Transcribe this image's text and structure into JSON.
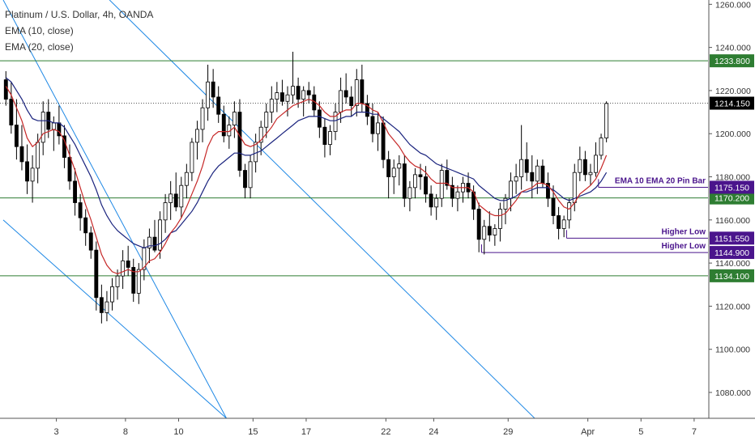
{
  "legend": {
    "title": "Platinum / U.S. Dollar, 4h, OANDA",
    "ema10": "EMA (10, close)",
    "ema20": "EMA (20, close)"
  },
  "colors": {
    "up": "#ffffff",
    "down": "#000000",
    "wick": "#000000",
    "ema10": "#c62828",
    "ema20": "#1a237e",
    "support": "#2e7d32",
    "channel": "#1e88e5",
    "annotation": "#4a148c",
    "current": "#000000",
    "grid": "#e0e3eb"
  },
  "chart_data": {
    "type": "candlestick",
    "title": "Platinum / U.S. Dollar, 4h, OANDA",
    "ylim": [
      1068,
      1262
    ],
    "xlim": [
      0,
      132
    ],
    "y_ticks": [
      "1080.000",
      "1100.000",
      "1120.000",
      "1140.000",
      "1160.000",
      "1180.000",
      "1200.000",
      "1220.000",
      "1240.000",
      "1260.000"
    ],
    "x_ticks": [
      {
        "label": "3",
        "x": 10
      },
      {
        "label": "8",
        "x": 23
      },
      {
        "label": "10",
        "x": 33
      },
      {
        "label": "15",
        "x": 47
      },
      {
        "label": "17",
        "x": 57
      },
      {
        "label": "22",
        "x": 72
      },
      {
        "label": "24",
        "x": 81
      },
      {
        "label": "29",
        "x": 95
      },
      {
        "label": "Apr",
        "x": 110
      },
      {
        "label": "5",
        "x": 120
      },
      {
        "label": "7",
        "x": 130
      }
    ],
    "candles": [
      [
        1225,
        1229,
        1213,
        1216
      ],
      [
        1216,
        1224,
        1200,
        1204
      ],
      [
        1204,
        1216,
        1188,
        1194
      ],
      [
        1194,
        1204,
        1183,
        1187
      ],
      [
        1187,
        1195,
        1172,
        1178
      ],
      [
        1178,
        1190,
        1168,
        1184
      ],
      [
        1184,
        1200,
        1177,
        1196
      ],
      [
        1196,
        1215,
        1190,
        1210
      ],
      [
        1210,
        1216,
        1198,
        1202
      ],
      [
        1202,
        1208,
        1192,
        1205
      ],
      [
        1205,
        1213,
        1195,
        1199
      ],
      [
        1199,
        1204,
        1184,
        1189
      ],
      [
        1189,
        1195,
        1174,
        1178
      ],
      [
        1178,
        1184,
        1162,
        1168
      ],
      [
        1168,
        1172,
        1155,
        1161
      ],
      [
        1161,
        1165,
        1148,
        1154
      ],
      [
        1154,
        1157,
        1142,
        1146
      ],
      [
        1146,
        1150,
        1118,
        1124
      ],
      [
        1124,
        1130,
        1112,
        1117
      ],
      [
        1117,
        1127,
        1113,
        1122
      ],
      [
        1122,
        1133,
        1118,
        1129
      ],
      [
        1129,
        1137,
        1123,
        1134
      ],
      [
        1134,
        1146,
        1128,
        1141
      ],
      [
        1141,
        1148,
        1134,
        1138
      ],
      [
        1138,
        1142,
        1122,
        1126
      ],
      [
        1126,
        1140,
        1121,
        1137
      ],
      [
        1137,
        1151,
        1132,
        1147
      ],
      [
        1147,
        1156,
        1140,
        1152
      ],
      [
        1152,
        1160,
        1145,
        1146
      ],
      [
        1146,
        1164,
        1142,
        1160
      ],
      [
        1160,
        1172,
        1154,
        1168
      ],
      [
        1168,
        1178,
        1160,
        1172
      ],
      [
        1172,
        1182,
        1164,
        1166
      ],
      [
        1166,
        1180,
        1161,
        1176
      ],
      [
        1176,
        1186,
        1170,
        1182
      ],
      [
        1182,
        1198,
        1178,
        1196
      ],
      [
        1196,
        1206,
        1188,
        1202
      ],
      [
        1202,
        1216,
        1196,
        1212
      ],
      [
        1212,
        1232,
        1206,
        1224
      ],
      [
        1224,
        1230,
        1212,
        1217
      ],
      [
        1217,
        1222,
        1205,
        1209
      ],
      [
        1209,
        1213,
        1196,
        1199
      ],
      [
        1199,
        1208,
        1193,
        1204
      ],
      [
        1204,
        1215,
        1198,
        1210
      ],
      [
        1210,
        1216,
        1180,
        1183
      ],
      [
        1183,
        1186,
        1170,
        1175
      ],
      [
        1175,
        1190,
        1170,
        1187
      ],
      [
        1187,
        1200,
        1182,
        1196
      ],
      [
        1196,
        1206,
        1190,
        1203
      ],
      [
        1203,
        1214,
        1198,
        1210
      ],
      [
        1210,
        1222,
        1205,
        1216
      ],
      [
        1216,
        1224,
        1210,
        1219
      ],
      [
        1219,
        1225,
        1213,
        1215
      ],
      [
        1215,
        1222,
        1208,
        1218
      ],
      [
        1218,
        1238,
        1214,
        1222
      ],
      [
        1222,
        1226,
        1212,
        1216
      ],
      [
        1216,
        1222,
        1208,
        1220
      ],
      [
        1220,
        1224,
        1214,
        1218
      ],
      [
        1218,
        1222,
        1208,
        1211
      ],
      [
        1211,
        1215,
        1198,
        1203
      ],
      [
        1203,
        1207,
        1189,
        1195
      ],
      [
        1195,
        1204,
        1190,
        1201
      ],
      [
        1201,
        1214,
        1197,
        1210
      ],
      [
        1210,
        1226,
        1205,
        1220
      ],
      [
        1220,
        1228,
        1214,
        1217
      ],
      [
        1217,
        1222,
        1208,
        1213
      ],
      [
        1213,
        1230,
        1208,
        1225
      ],
      [
        1225,
        1232,
        1210,
        1214
      ],
      [
        1214,
        1218,
        1204,
        1208
      ],
      [
        1208,
        1214,
        1196,
        1200
      ],
      [
        1200,
        1210,
        1192,
        1205
      ],
      [
        1205,
        1208,
        1184,
        1188
      ],
      [
        1188,
        1192,
        1170,
        1180
      ],
      [
        1180,
        1188,
        1172,
        1184
      ],
      [
        1184,
        1190,
        1176,
        1186
      ],
      [
        1186,
        1190,
        1166,
        1170
      ],
      [
        1170,
        1178,
        1164,
        1175
      ],
      [
        1175,
        1184,
        1170,
        1181
      ],
      [
        1181,
        1186,
        1174,
        1180
      ],
      [
        1180,
        1185,
        1168,
        1172
      ],
      [
        1172,
        1176,
        1162,
        1166
      ],
      [
        1166,
        1172,
        1160,
        1170
      ],
      [
        1170,
        1186,
        1166,
        1183
      ],
      [
        1183,
        1188,
        1174,
        1176
      ],
      [
        1176,
        1180,
        1166,
        1170
      ],
      [
        1170,
        1176,
        1164,
        1173
      ],
      [
        1173,
        1180,
        1168,
        1177
      ],
      [
        1177,
        1182,
        1170,
        1173
      ],
      [
        1173,
        1176,
        1160,
        1165
      ],
      [
        1165,
        1168,
        1145,
        1151
      ],
      [
        1151,
        1160,
        1144,
        1157
      ],
      [
        1157,
        1164,
        1150,
        1153
      ],
      [
        1153,
        1158,
        1148,
        1156
      ],
      [
        1156,
        1168,
        1150,
        1165
      ],
      [
        1165,
        1172,
        1158,
        1170
      ],
      [
        1170,
        1182,
        1164,
        1178
      ],
      [
        1178,
        1186,
        1172,
        1180
      ],
      [
        1180,
        1204,
        1174,
        1188
      ],
      [
        1188,
        1196,
        1178,
        1182
      ],
      [
        1182,
        1190,
        1170,
        1178
      ],
      [
        1178,
        1188,
        1172,
        1185
      ],
      [
        1185,
        1188,
        1175,
        1177
      ],
      [
        1177,
        1182,
        1166,
        1170
      ],
      [
        1170,
        1176,
        1158,
        1162
      ],
      [
        1162,
        1166,
        1151,
        1156
      ],
      [
        1156,
        1162,
        1152,
        1160
      ],
      [
        1160,
        1170,
        1156,
        1168
      ],
      [
        1168,
        1186,
        1164,
        1182
      ],
      [
        1182,
        1194,
        1178,
        1188
      ],
      [
        1188,
        1192,
        1178,
        1181
      ],
      [
        1181,
        1186,
        1176,
        1182
      ],
      [
        1182,
        1196,
        1180,
        1190
      ],
      [
        1190,
        1200,
        1188,
        1198
      ],
      [
        1198,
        1215,
        1196,
        1214
      ]
    ],
    "ema10": [
      1222,
      1218,
      1212,
      1206,
      1198,
      1194,
      1196,
      1200,
      1201,
      1202,
      1201,
      1197,
      1190,
      1183,
      1175,
      1167,
      1160,
      1152,
      1144,
      1139,
      1136,
      1135,
      1136,
      1137,
      1136,
      1136,
      1138,
      1141,
      1142,
      1145,
      1149,
      1154,
      1157,
      1161,
      1166,
      1172,
      1178,
      1185,
      1194,
      1199,
      1201,
      1201,
      1201,
      1203,
      1199,
      1195,
      1194,
      1195,
      1197,
      1200,
      1203,
      1207,
      1209,
      1211,
      1213,
      1214,
      1215,
      1216,
      1215,
      1213,
      1210,
      1208,
      1208,
      1210,
      1211,
      1211,
      1214,
      1214,
      1213,
      1211,
      1210,
      1205,
      1200,
      1197,
      1194,
      1190,
      1187,
      1185,
      1184,
      1182,
      1179,
      1177,
      1177,
      1177,
      1175,
      1175,
      1175,
      1175,
      1173,
      1167,
      1165,
      1163,
      1162,
      1162,
      1163,
      1166,
      1169,
      1173,
      1174,
      1175,
      1177,
      1177,
      1176,
      1173,
      1169,
      1166,
      1165,
      1168,
      1172,
      1174,
      1176,
      1179,
      1184,
      1190
    ],
    "ema20": [
      1226,
      1224,
      1220,
      1216,
      1211,
      1207,
      1206,
      1206,
      1206,
      1205,
      1205,
      1203,
      1199,
      1195,
      1190,
      1185,
      1180,
      1174,
      1167,
      1162,
      1158,
      1155,
      1153,
      1151,
      1149,
      1148,
      1147,
      1148,
      1148,
      1149,
      1151,
      1154,
      1155,
      1158,
      1161,
      1164,
      1168,
      1173,
      1178,
      1182,
      1185,
      1187,
      1189,
      1191,
      1191,
      1190,
      1190,
      1191,
      1192,
      1194,
      1196,
      1198,
      1200,
      1202,
      1204,
      1206,
      1207,
      1208,
      1208,
      1208,
      1207,
      1206,
      1206,
      1207,
      1208,
      1208,
      1210,
      1210,
      1210,
      1209,
      1209,
      1207,
      1205,
      1203,
      1201,
      1198,
      1195,
      1193,
      1191,
      1190,
      1188,
      1186,
      1185,
      1184,
      1183,
      1182,
      1181,
      1180,
      1179,
      1176,
      1174,
      1172,
      1170,
      1169,
      1169,
      1170,
      1171,
      1173,
      1173,
      1174,
      1175,
      1175,
      1175,
      1174,
      1172,
      1170,
      1169,
      1170,
      1171,
      1172,
      1173,
      1175,
      1178,
      1182
    ],
    "horizontal_levels": [
      {
        "price": 1233.8,
        "label": "1233.800",
        "kind": "support"
      },
      {
        "price": 1170.2,
        "label": "1170.200",
        "kind": "support"
      },
      {
        "price": 1134.1,
        "label": "1134.100",
        "kind": "support"
      }
    ],
    "current_price": {
      "price": 1214.15,
      "label": "1214.150"
    },
    "annotations": [
      {
        "text": "EMA 10 EMA 20 Pin Bar",
        "price": 1175.15,
        "label": "1175.150",
        "x_start": 112
      },
      {
        "text": "Higher Low",
        "price": 1151.55,
        "label": "1151.550",
        "x_start": 106
      },
      {
        "text": "Higher Low",
        "price": 1144.9,
        "label": "1144.900",
        "x_start": 90
      }
    ],
    "channel_lines": [
      {
        "points": [
          [
            0,
            1262
          ],
          [
            42,
            1068
          ]
        ]
      },
      {
        "points": [
          [
            0,
            1160
          ],
          [
            42,
            1068
          ]
        ]
      },
      {
        "points": [
          [
            20,
            1262
          ],
          [
            100,
            1068
          ]
        ]
      }
    ]
  }
}
